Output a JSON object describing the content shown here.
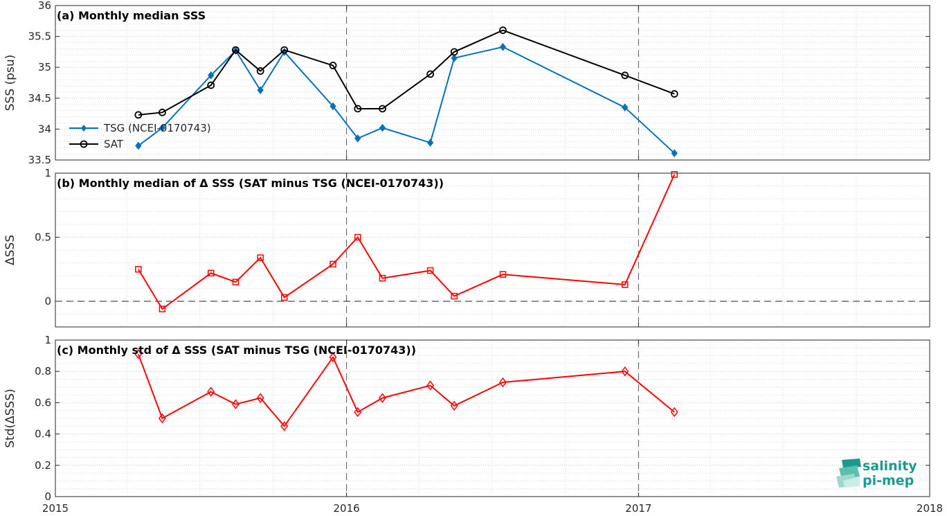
{
  "x_axis": {
    "ticks": [
      "2015",
      "2016",
      "2017",
      "2018"
    ]
  },
  "chart_data": [
    {
      "type": "line",
      "title": "(a) Monthly median SSS",
      "ylabel": "SSS (psu)",
      "ylim": [
        33.5,
        36
      ],
      "yticks": [
        "33.5",
        "34",
        "34.5",
        "35",
        "35.5",
        "36"
      ],
      "xlim": [
        "2015-01-01",
        "2018-01-01"
      ],
      "grid": true,
      "legend_position": "left",
      "series": [
        {
          "name": "TSG (NCEI-0170743)",
          "color": "#0072BD",
          "marker": "diamond-filled",
          "x": [
            "2015-04-15",
            "2015-05-15",
            "2015-07-15",
            "2015-08-15",
            "2015-09-15",
            "2015-10-15",
            "2015-12-15",
            "2016-01-15",
            "2016-02-15",
            "2016-04-15",
            "2016-05-15",
            "2016-07-15",
            "2016-12-15",
            "2017-02-15"
          ],
          "values": [
            33.73,
            34.02,
            34.87,
            35.27,
            34.63,
            35.25,
            34.37,
            33.85,
            34.02,
            33.78,
            35.15,
            35.33,
            34.35,
            33.61
          ]
        },
        {
          "name": "SAT",
          "color": "#000000",
          "marker": "circle-open",
          "x": [
            "2015-04-15",
            "2015-05-15",
            "2015-07-15",
            "2015-08-15",
            "2015-09-15",
            "2015-10-15",
            "2015-12-15",
            "2016-01-15",
            "2016-02-15",
            "2016-04-15",
            "2016-05-15",
            "2016-07-15",
            "2016-12-15",
            "2017-02-15"
          ],
          "values": [
            34.23,
            34.27,
            34.71,
            35.28,
            34.94,
            35.28,
            35.03,
            34.33,
            34.33,
            34.89,
            35.25,
            35.6,
            34.87,
            34.57
          ]
        }
      ]
    },
    {
      "type": "line",
      "title": "(b) Monthly median of Δ SSS (SAT minus TSG (NCEI-0170743))",
      "ylabel": "ΔSSS",
      "ylim": [
        -0.2,
        1
      ],
      "yticks": [
        "0",
        "0.5",
        "1"
      ],
      "xlim": [
        "2015-01-01",
        "2018-01-01"
      ],
      "grid": true,
      "zero_line": true,
      "series": [
        {
          "color": "#FF0000",
          "marker": "square-open",
          "x": [
            "2015-04-15",
            "2015-05-15",
            "2015-07-15",
            "2015-08-15",
            "2015-09-15",
            "2015-10-15",
            "2015-12-15",
            "2016-01-15",
            "2016-02-15",
            "2016-04-15",
            "2016-05-15",
            "2016-07-15",
            "2016-12-15",
            "2017-02-15"
          ],
          "values": [
            0.25,
            -0.06,
            0.22,
            0.15,
            0.34,
            0.03,
            0.29,
            0.5,
            0.18,
            0.24,
            0.04,
            0.21,
            0.13,
            0.99
          ]
        }
      ]
    },
    {
      "type": "line",
      "title": "(c) Monthly std of Δ SSS (SAT minus TSG (NCEI-0170743))",
      "ylabel": "Std(ΔSSS)",
      "ylim": [
        0,
        1
      ],
      "yticks": [
        "0",
        "0.2",
        "0.4",
        "0.6",
        "0.8",
        "1"
      ],
      "xlim": [
        "2015-01-01",
        "2018-01-01"
      ],
      "grid": true,
      "series": [
        {
          "color": "#FF0000",
          "marker": "diamond-open",
          "x": [
            "2015-04-15",
            "2015-05-15",
            "2015-07-15",
            "2015-08-15",
            "2015-09-15",
            "2015-10-15",
            "2015-12-15",
            "2016-01-15",
            "2016-02-15",
            "2016-04-15",
            "2016-05-15",
            "2016-07-15",
            "2016-12-15",
            "2017-02-15"
          ],
          "values": [
            0.91,
            0.5,
            0.67,
            0.59,
            0.63,
            0.45,
            0.89,
            0.54,
            0.63,
            0.71,
            0.58,
            0.73,
            0.8,
            0.54
          ]
        }
      ]
    }
  ],
  "logo": {
    "line1": "salinity",
    "line2": "pi-mep",
    "color": "#1a9b8c"
  }
}
